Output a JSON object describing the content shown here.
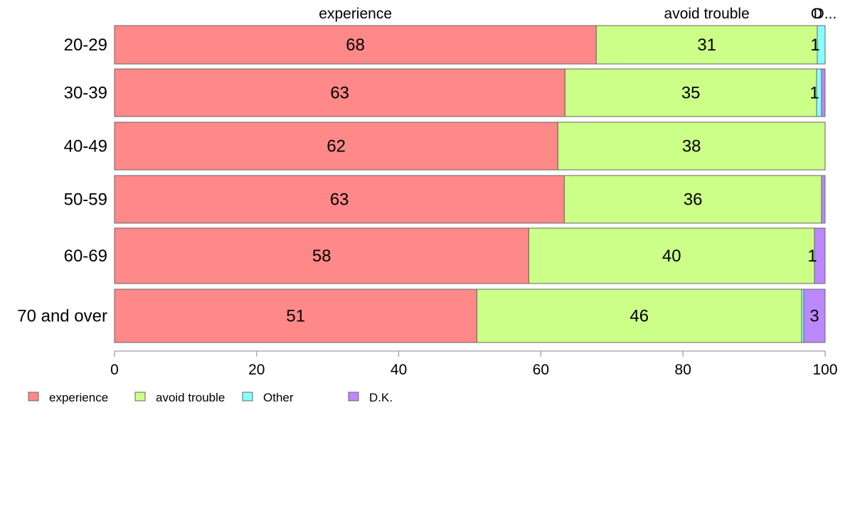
{
  "chart_data": {
    "type": "bar",
    "orientation": "horizontal",
    "stacked": true,
    "categories": [
      "20-29",
      "30-39",
      "40-49",
      "50-59",
      "60-69",
      "70 and over"
    ],
    "series": [
      {
        "name": "experience",
        "color": "#FF8888",
        "values": [
          67.8,
          63.4,
          62.4,
          63.3,
          58.3,
          51.0
        ]
      },
      {
        "name": "avoid trouble",
        "color": "#CCFF88",
        "values": [
          31.1,
          35.4,
          37.6,
          36.2,
          40.2,
          45.7
        ]
      },
      {
        "name": "Other",
        "color": "#88FFFF",
        "values": [
          1.1,
          0.7,
          0.0,
          0.0,
          0.0,
          0.3
        ]
      },
      {
        "name": "D.K.",
        "color": "#BB88FF",
        "values": [
          0.0,
          0.5,
          0.0,
          0.5,
          1.5,
          3.0
        ]
      }
    ],
    "data_labels": [
      [
        "68",
        "31",
        "1",
        ""
      ],
      [
        "63",
        "35",
        "1",
        ""
      ],
      [
        "62",
        "38",
        "",
        ""
      ],
      [
        "63",
        "36",
        "",
        ""
      ],
      [
        "58",
        "40",
        "",
        "1"
      ],
      [
        "51",
        "46",
        "",
        "3"
      ]
    ],
    "top_labels": [
      "experience",
      "avoid trouble",
      "Other",
      "D.K."
    ],
    "top_label_texts": [
      "experience",
      "avoid trouble",
      "O",
      "D..."
    ],
    "xlim": [
      0,
      100
    ],
    "xticks": [
      0,
      20,
      40,
      60,
      80,
      100
    ],
    "grid": false,
    "legend_position": "bottom-left",
    "title": "",
    "xlabel": "",
    "ylabel": ""
  }
}
